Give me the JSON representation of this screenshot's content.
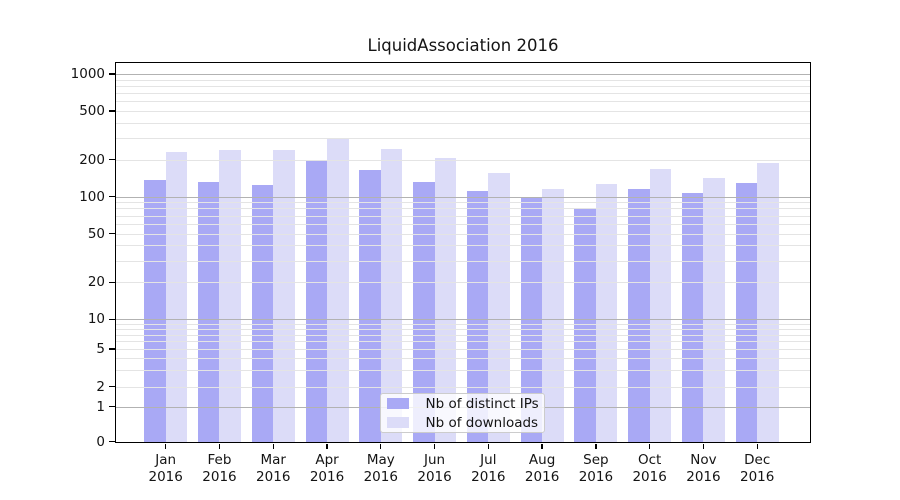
{
  "title": "LiquidAssociation 2016",
  "chart_data": {
    "type": "bar",
    "title": "LiquidAssociation 2016",
    "categories": [
      "Jan 2016",
      "Feb 2016",
      "Mar 2016",
      "Apr 2016",
      "May 2016",
      "Jun 2016",
      "Jul 2016",
      "Aug 2016",
      "Sep 2016",
      "Oct 2016",
      "Nov 2016",
      "Dec 2016"
    ],
    "month_labels": [
      "Jan",
      "Feb",
      "Mar",
      "Apr",
      "May",
      "Jun",
      "Jul",
      "Aug",
      "Sep",
      "Oct",
      "Nov",
      "Dec"
    ],
    "year_label": "2016",
    "series": [
      {
        "name": "Nb of distinct IPs",
        "color": "#a9a9f5",
        "values": [
          136,
          131,
          125,
          195,
          166,
          132,
          111,
          98,
          80,
          116,
          106,
          129
        ]
      },
      {
        "name": "Nb of downloads",
        "color": "#dcdcf8",
        "values": [
          232,
          240,
          240,
          295,
          244,
          206,
          155,
          115,
          127,
          169,
          143,
          189
        ]
      }
    ],
    "yaxis": {
      "scale": "symlog",
      "tick_values": [
        0,
        1,
        2,
        5,
        10,
        20,
        50,
        100,
        200,
        500,
        1000
      ],
      "tick_labels": [
        "0",
        "1",
        "2",
        "5",
        "10",
        "20",
        "50",
        "100",
        "200",
        "500",
        "1000"
      ],
      "range_top": 1260
    },
    "xlabel": "",
    "ylabel": "",
    "grid": "horizontal, major (decades) dark + minor light, drawn above bars",
    "legend_position": "lower center"
  },
  "colors": {
    "series_dark": "#a9a9f5",
    "series_light": "#dcdcf8",
    "major_grid": "#b2b2b2",
    "minor_grid": "#e4e4e4",
    "spine": "#000000",
    "text": "#141414"
  }
}
